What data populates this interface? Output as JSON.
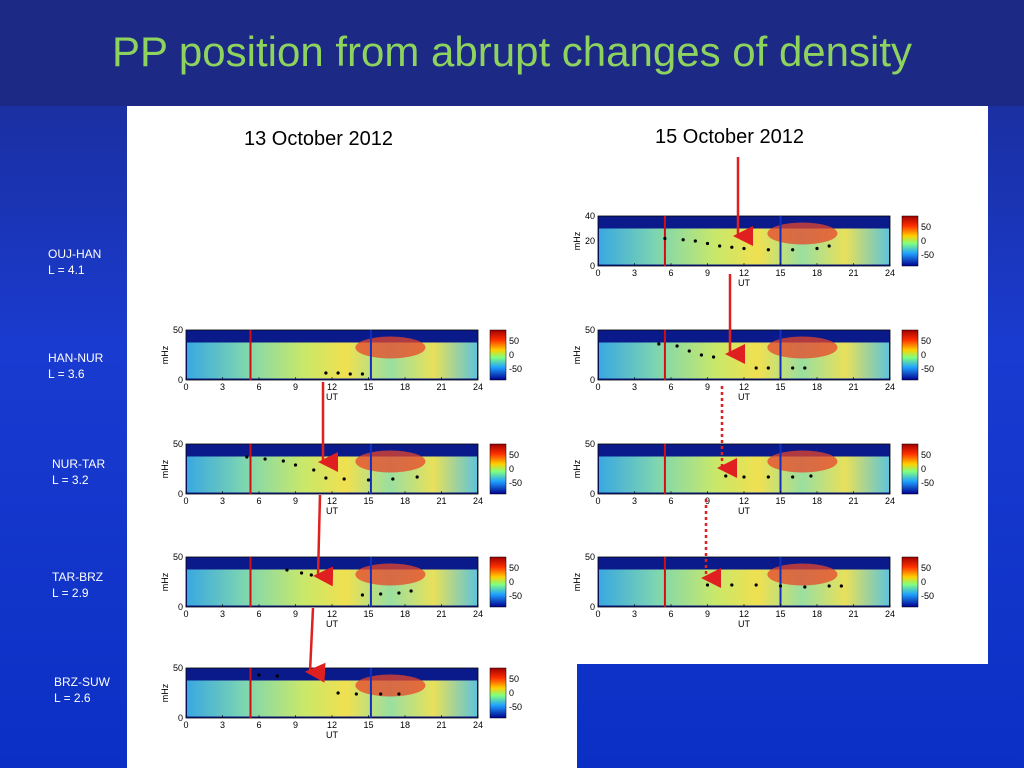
{
  "slide": {
    "title": "PP position from abrupt changes of density",
    "colors": {
      "title": "#8fd35f",
      "background": "#1a3bd0",
      "arrow": "#e02020"
    }
  },
  "columns": [
    {
      "date": "13 October 2012"
    },
    {
      "date": "15 October 2012"
    }
  ],
  "rows": [
    {
      "pair": "OUJ-HAN",
      "L": "L = 4.1"
    },
    {
      "pair": "HAN-NUR",
      "L": "L = 3.6"
    },
    {
      "pair": "NUR-TAR",
      "L": "L = 3.2"
    },
    {
      "pair": "TAR-BRZ",
      "L": "L = 2.9"
    },
    {
      "pair": "BRZ-SUW",
      "L": "L = 2.6"
    }
  ],
  "chart_data": [
    {
      "type": "heatmap",
      "date": "15 October 2012",
      "pair": "OUJ-HAN",
      "ylabel": "mHz",
      "xlabel": "UT",
      "yticks": [
        "0",
        "20",
        "40"
      ],
      "xticks": [
        "0",
        "3",
        "6",
        "9",
        "12",
        "15",
        "18",
        "21",
        "24"
      ],
      "colorbar_ticks": [
        "50",
        "0",
        "-50"
      ],
      "xlim": [
        0,
        24
      ],
      "ridge": [
        [
          5.5,
          22
        ],
        [
          7,
          21
        ],
        [
          8,
          20
        ],
        [
          9,
          18
        ],
        [
          10,
          16
        ],
        [
          11,
          15
        ],
        [
          12,
          14
        ],
        [
          14,
          13
        ],
        [
          16,
          13
        ],
        [
          18,
          14
        ],
        [
          19,
          16
        ]
      ],
      "red_line_ut": 5.5,
      "blue_line_ut": 15
    },
    {
      "type": "heatmap",
      "date": "13 October 2012",
      "pair": "HAN-NUR",
      "ylabel": "mHz",
      "xlabel": "UT",
      "yticks": [
        "0",
        "50"
      ],
      "xticks": [
        "0",
        "3",
        "6",
        "9",
        "12",
        "15",
        "18",
        "21",
        "24"
      ],
      "colorbar_ticks": [
        "50",
        "0",
        "-50"
      ],
      "xlim": [
        0,
        24
      ],
      "ridge": [
        [
          11.5,
          7
        ],
        [
          12.5,
          7
        ],
        [
          13.5,
          6
        ],
        [
          14.5,
          6
        ]
      ],
      "red_line_ut": 5.3,
      "blue_line_ut": 15.2
    },
    {
      "type": "heatmap",
      "date": "15 October 2012",
      "pair": "HAN-NUR",
      "ylabel": "mHz",
      "xlabel": "UT",
      "yticks": [
        "0",
        "50"
      ],
      "xticks": [
        "0",
        "3",
        "6",
        "9",
        "12",
        "15",
        "18",
        "21",
        "24"
      ],
      "colorbar_ticks": [
        "50",
        "0",
        "-50"
      ],
      "xlim": [
        0,
        24
      ],
      "ridge": [
        [
          5,
          36
        ],
        [
          6.5,
          34
        ],
        [
          7.5,
          29
        ],
        [
          8.5,
          25
        ],
        [
          9.5,
          23
        ],
        [
          13,
          12
        ],
        [
          14,
          12
        ],
        [
          16,
          12
        ],
        [
          17,
          12
        ]
      ],
      "red_line_ut": 5.5,
      "blue_line_ut": 15
    },
    {
      "type": "heatmap",
      "date": "13 October 2012",
      "pair": "NUR-TAR",
      "ylabel": "mHz",
      "xlabel": "UT",
      "yticks": [
        "0",
        "50"
      ],
      "xticks": [
        "0",
        "3",
        "6",
        "9",
        "12",
        "15",
        "18",
        "21",
        "24"
      ],
      "colorbar_ticks": [
        "50",
        "0",
        "-50"
      ],
      "xlim": [
        0,
        24
      ],
      "ridge": [
        [
          5,
          37
        ],
        [
          6.5,
          35
        ],
        [
          8,
          33
        ],
        [
          9,
          29
        ],
        [
          10.5,
          24
        ],
        [
          11.5,
          16
        ],
        [
          13,
          15
        ],
        [
          15,
          14
        ],
        [
          17,
          15
        ],
        [
          19,
          17
        ]
      ],
      "red_line_ut": 5.3,
      "blue_line_ut": 15.2
    },
    {
      "type": "heatmap",
      "date": "15 October 2012",
      "pair": "NUR-TAR",
      "ylabel": "mHz",
      "xlabel": "UT",
      "yticks": [
        "0",
        "50"
      ],
      "xticks": [
        "0",
        "3",
        "6",
        "9",
        "12",
        "15",
        "18",
        "21",
        "24"
      ],
      "colorbar_ticks": [
        "50",
        "0",
        "-50"
      ],
      "xlim": [
        0,
        24
      ],
      "ridge": [
        [
          10.5,
          18
        ],
        [
          12,
          17
        ],
        [
          14,
          17
        ],
        [
          16,
          17
        ],
        [
          17.5,
          18
        ]
      ],
      "red_line_ut": 5.5,
      "blue_line_ut": 15
    },
    {
      "type": "heatmap",
      "date": "13 October 2012",
      "pair": "TAR-BRZ",
      "ylabel": "mHz",
      "xlabel": "UT",
      "yticks": [
        "0",
        "50"
      ],
      "xticks": [
        "0",
        "3",
        "6",
        "9",
        "12",
        "15",
        "18",
        "21",
        "24"
      ],
      "colorbar_ticks": [
        "50",
        "0",
        "-50"
      ],
      "xlim": [
        0,
        24
      ],
      "ridge": [
        [
          8.3,
          37
        ],
        [
          9.5,
          34
        ],
        [
          10.3,
          32
        ],
        [
          14.5,
          12
        ],
        [
          16,
          13
        ],
        [
          17.5,
          14
        ],
        [
          18.5,
          16
        ]
      ],
      "red_line_ut": 5.3,
      "blue_line_ut": 15.2
    },
    {
      "type": "heatmap",
      "date": "15 October 2012",
      "pair": "TAR-BRZ",
      "ylabel": "mHz",
      "xlabel": "UT",
      "yticks": [
        "0",
        "50"
      ],
      "xticks": [
        "0",
        "3",
        "6",
        "9",
        "12",
        "15",
        "18",
        "21",
        "24"
      ],
      "colorbar_ticks": [
        "50",
        "0",
        "-50"
      ],
      "xlim": [
        0,
        24
      ],
      "ridge": [
        [
          9,
          22
        ],
        [
          11,
          22
        ],
        [
          13,
          22
        ],
        [
          15,
          21
        ],
        [
          17,
          20
        ],
        [
          19,
          21
        ],
        [
          20,
          21
        ]
      ],
      "red_line_ut": 5.5,
      "blue_line_ut": 15
    },
    {
      "type": "heatmap",
      "date": "13 October 2012",
      "pair": "BRZ-SUW",
      "ylabel": "mHz",
      "xlabel": "UT",
      "yticks": [
        "0",
        "50"
      ],
      "xticks": [
        "0",
        "3",
        "6",
        "9",
        "12",
        "15",
        "18",
        "21",
        "24"
      ],
      "colorbar_ticks": [
        "50",
        "0",
        "-50"
      ],
      "xlim": [
        0,
        24
      ],
      "ridge": [
        [
          6,
          43
        ],
        [
          7.5,
          42
        ],
        [
          12.5,
          25
        ],
        [
          14,
          24
        ],
        [
          16,
          24
        ],
        [
          17.5,
          24
        ]
      ],
      "red_line_ut": 5.3,
      "blue_line_ut": 15.2
    }
  ]
}
